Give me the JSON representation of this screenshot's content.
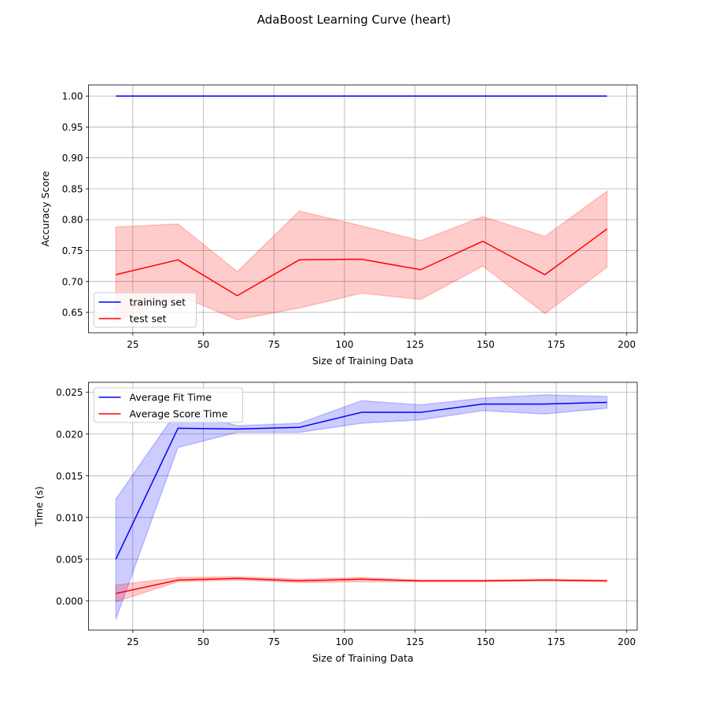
{
  "figure": {
    "suptitle": "AdaBoost Learning Curve (heart)"
  },
  "chart_data": [
    {
      "type": "line",
      "title": "",
      "xlabel": "Size of Training Data",
      "ylabel": "Accuracy Score",
      "xlim": [
        9.3,
        203.7
      ],
      "ylim": [
        0.617,
        1.018
      ],
      "xticks": [
        25,
        50,
        75,
        100,
        125,
        150,
        175,
        200
      ],
      "yticks": [
        0.65,
        0.7,
        0.75,
        0.8,
        0.85,
        0.9,
        0.95,
        1.0
      ],
      "ytick_decimals": 2,
      "grid": true,
      "legend": "lower left",
      "x": [
        19,
        41,
        62,
        84,
        106,
        127,
        149,
        171,
        193
      ],
      "series": [
        {
          "name": "training set",
          "color": "#0000ff",
          "values": [
            1.0,
            1.0,
            1.0,
            1.0,
            1.0,
            1.0,
            1.0,
            1.0,
            1.0
          ],
          "lower": [
            1.0,
            1.0,
            1.0,
            1.0,
            1.0,
            1.0,
            1.0,
            1.0,
            1.0
          ],
          "upper": [
            1.0,
            1.0,
            1.0,
            1.0,
            1.0,
            1.0,
            1.0,
            1.0,
            1.0
          ]
        },
        {
          "name": "test set",
          "color": "#ff0000",
          "values": [
            0.711,
            0.735,
            0.677,
            0.735,
            0.736,
            0.719,
            0.765,
            0.711,
            0.785
          ],
          "lower": [
            0.634,
            0.678,
            0.638,
            0.657,
            0.681,
            0.671,
            0.725,
            0.648,
            0.723
          ],
          "upper": [
            0.788,
            0.793,
            0.716,
            0.814,
            0.79,
            0.766,
            0.805,
            0.773,
            0.846
          ]
        }
      ]
    },
    {
      "type": "line",
      "title": "",
      "xlabel": "Size of Training Data",
      "ylabel": "Time (s)",
      "xlim": [
        9.3,
        203.7
      ],
      "ylim": [
        -0.0035,
        0.0262
      ],
      "xticks": [
        25,
        50,
        75,
        100,
        125,
        150,
        175,
        200
      ],
      "yticks": [
        0.0,
        0.005,
        0.01,
        0.015,
        0.02,
        0.025
      ],
      "ytick_decimals": 3,
      "grid": true,
      "legend": "upper left",
      "x": [
        19,
        41,
        62,
        84,
        106,
        127,
        149,
        171,
        193
      ],
      "series": [
        {
          "name": "Average Fit Time",
          "color": "#0000ff",
          "values": [
            0.005,
            0.0207,
            0.0206,
            0.0208,
            0.0226,
            0.0226,
            0.0236,
            0.0236,
            0.0238
          ],
          "lower": [
            -0.0022,
            0.0184,
            0.0202,
            0.0202,
            0.0213,
            0.0217,
            0.0228,
            0.0224,
            0.0231
          ],
          "upper": [
            0.0122,
            0.0229,
            0.021,
            0.0213,
            0.024,
            0.0235,
            0.0243,
            0.0247,
            0.0245
          ]
        },
        {
          "name": "Average Score Time",
          "color": "#ff0000",
          "values": [
            0.0009,
            0.0025,
            0.0027,
            0.0024,
            0.0026,
            0.0024,
            0.0024,
            0.0025,
            0.0024
          ],
          "lower": [
            -0.0001,
            0.0023,
            0.0025,
            0.0022,
            0.0023,
            0.0023,
            0.0023,
            0.0024,
            0.0023
          ],
          "upper": [
            0.0019,
            0.0028,
            0.0029,
            0.0026,
            0.0028,
            0.0025,
            0.0025,
            0.0026,
            0.0025
          ]
        }
      ]
    }
  ]
}
